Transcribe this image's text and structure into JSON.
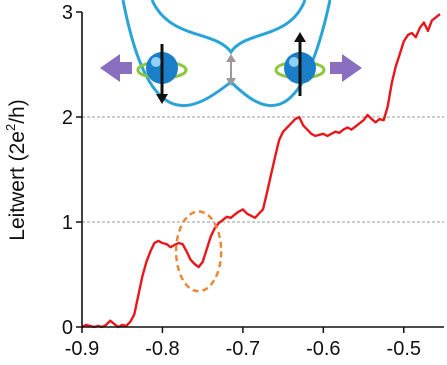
{
  "chart_data": {
    "type": "line",
    "xlabel": "",
    "ylabel": {
      "main": "Leitwert (2e",
      "sup": "2",
      "tail": "/h)"
    },
    "xlim": [
      -0.9,
      -0.45
    ],
    "ylim": [
      0,
      3
    ],
    "x_ticks": [
      "-0.9",
      "-0.8",
      "-0.7",
      "-0.6",
      "-0.5"
    ],
    "x_tick_values": [
      -0.9,
      -0.8,
      -0.7,
      -0.6,
      -0.5
    ],
    "y_ticks": [
      "0",
      "1",
      "2",
      "3"
    ],
    "y_tick_values": [
      0,
      1,
      2,
      3
    ],
    "gridlines_y": [
      1,
      2
    ],
    "grid_style": "dashed",
    "series": [
      {
        "color": "#e8171b",
        "x": [
          -0.9,
          -0.895,
          -0.89,
          -0.885,
          -0.88,
          -0.875,
          -0.87,
          -0.865,
          -0.86,
          -0.855,
          -0.85,
          -0.845,
          -0.84,
          -0.835,
          -0.83,
          -0.825,
          -0.82,
          -0.815,
          -0.81,
          -0.805,
          -0.8,
          -0.795,
          -0.79,
          -0.785,
          -0.78,
          -0.775,
          -0.77,
          -0.765,
          -0.76,
          -0.755,
          -0.75,
          -0.745,
          -0.74,
          -0.735,
          -0.73,
          -0.725,
          -0.72,
          -0.715,
          -0.71,
          -0.705,
          -0.7,
          -0.695,
          -0.69,
          -0.685,
          -0.68,
          -0.675,
          -0.67,
          -0.665,
          -0.66,
          -0.655,
          -0.65,
          -0.645,
          -0.64,
          -0.635,
          -0.63,
          -0.625,
          -0.62,
          -0.615,
          -0.61,
          -0.605,
          -0.6,
          -0.595,
          -0.59,
          -0.585,
          -0.58,
          -0.575,
          -0.57,
          -0.565,
          -0.56,
          -0.555,
          -0.55,
          -0.545,
          -0.54,
          -0.535,
          -0.53,
          -0.525,
          -0.52,
          -0.515,
          -0.51,
          -0.505,
          -0.5,
          -0.495,
          -0.49,
          -0.485,
          -0.48,
          -0.475,
          -0.47,
          -0.465,
          -0.46,
          -0.455
        ],
        "y": [
          0.0,
          0.02,
          0.01,
          0.0,
          0.01,
          0.0,
          0.02,
          0.06,
          0.03,
          0.0,
          0.02,
          0.01,
          0.05,
          0.12,
          0.3,
          0.48,
          0.62,
          0.72,
          0.8,
          0.82,
          0.8,
          0.79,
          0.76,
          0.78,
          0.8,
          0.79,
          0.72,
          0.64,
          0.6,
          0.57,
          0.62,
          0.74,
          0.86,
          0.94,
          0.99,
          1.02,
          1.05,
          1.04,
          1.07,
          1.1,
          1.12,
          1.08,
          1.06,
          1.04,
          1.08,
          1.12,
          1.28,
          1.45,
          1.62,
          1.78,
          1.86,
          1.9,
          1.94,
          1.98,
          2.0,
          1.92,
          1.88,
          1.84,
          1.82,
          1.83,
          1.84,
          1.82,
          1.84,
          1.86,
          1.85,
          1.88,
          1.9,
          1.88,
          1.91,
          1.94,
          1.97,
          2.02,
          1.98,
          1.95,
          1.98,
          1.97,
          2.1,
          2.32,
          2.48,
          2.6,
          2.72,
          2.78,
          2.8,
          2.76,
          2.85,
          2.9,
          2.82,
          2.92,
          2.95,
          2.98
        ]
      }
    ],
    "annotation": {
      "type": "dashed-circle",
      "color": "#e8883a",
      "center": [
        -0.755,
        0.72
      ],
      "rx_data": 0.028,
      "ry_data": 0.38
    }
  },
  "inset": {
    "description_free": true,
    "curve_color": "#29a4d9",
    "arrow_color": "#8a6fc0",
    "spin_color": "#1a7fc8",
    "ring_color": "#8cc63f",
    "gap_arrow_color": "#999999"
  }
}
